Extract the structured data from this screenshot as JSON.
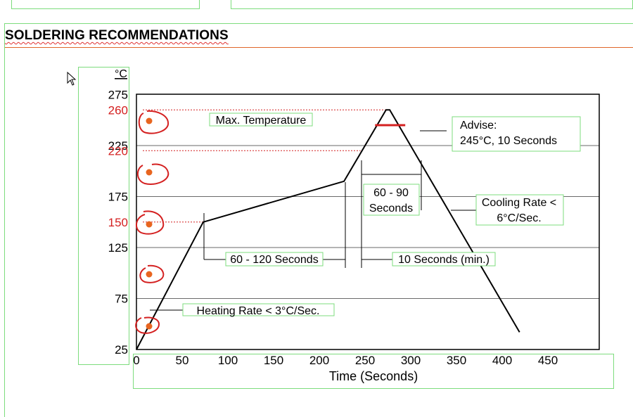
{
  "section_title": "SOLDERING RECOMMENDATIONS",
  "chart_data": {
    "type": "line",
    "title": "",
    "ylabel": "°C",
    "xlabel": "Time (Seconds)",
    "xlim": [
      0,
      500
    ],
    "ylim": [
      25,
      300
    ],
    "x_ticks": [
      "0",
      "50",
      "100",
      "150",
      "200",
      "250",
      "300",
      "350",
      "400",
      "450"
    ],
    "y_ticks": [
      {
        "label": "275",
        "value": 275,
        "highlight": false
      },
      {
        "label": "260",
        "value": 260,
        "highlight": true
      },
      {
        "label": "225",
        "value": 225,
        "highlight": false
      },
      {
        "label": "220",
        "value": 220,
        "highlight": true
      },
      {
        "label": "175",
        "value": 175,
        "highlight": false
      },
      {
        "label": "150",
        "value": 150,
        "highlight": true
      },
      {
        "label": "125",
        "value": 125,
        "highlight": false
      },
      {
        "label": "75",
        "value": 75,
        "highlight": false
      },
      {
        "label": "25",
        "value": 25,
        "highlight": false
      }
    ],
    "gridlines_y": [
      225,
      175,
      125,
      75
    ],
    "dashed_refs_y": [
      260,
      220,
      150
    ],
    "series": [
      {
        "name": "",
        "x": [
          0,
          73,
          227,
          273,
          277,
          419
        ],
        "y": [
          25,
          150,
          190,
          260,
          260,
          42
        ]
      }
    ],
    "advise_marker": {
      "y": 245,
      "x_from": 261,
      "x_to": 294
    },
    "annotations": {
      "max_temp": "Max. Temperature",
      "advise_line1": "Advise:",
      "advise_line2": "245°C, 10 Seconds",
      "window_60_90_line1": "60 - 90",
      "window_60_90_line2": "Seconds",
      "cooling_line1": "Cooling Rate <",
      "cooling_line2": "6°C/Sec.",
      "preheat": "60 - 120 Seconds",
      "min_time": "10 Seconds (min.)",
      "heating": "Heating Rate < 3°C/Sec."
    },
    "colors": {
      "axis": "#000000",
      "grid": "#6a6a6a",
      "highlight": "#d42020",
      "advise_marker": "#d42020",
      "frame_green": "#7ddc7d",
      "annotation_marker": "#e8651f"
    }
  }
}
